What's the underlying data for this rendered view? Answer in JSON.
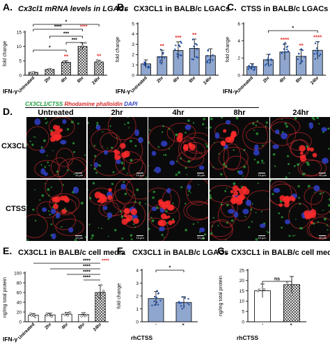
{
  "colors": {
    "blue_bar": "#8fa6cf",
    "red_star": "#e3342f",
    "black": "#000000",
    "hatch": "#333333",
    "dot": "#1f4fa0"
  },
  "panelA": {
    "label": "A.",
    "title": "Cx3cl1 mRNA levels in LGACs",
    "ylabel": "fold change",
    "xfactor": "IFN-γ",
    "chart_data": {
      "type": "bar",
      "categories": [
        "Untreated",
        "2hr",
        "4hr",
        "8hr",
        "24hr"
      ],
      "values": [
        1,
        2,
        4.5,
        10,
        4.6
      ],
      "ylim": [
        0,
        15
      ],
      "yticks": [
        "0",
        "5",
        "10",
        "15"
      ],
      "star_labels": [
        "",
        "",
        "**",
        "",
        "**"
      ],
      "brackets": [
        "****",
        "***",
        "*",
        "****",
        "***",
        "*"
      ],
      "bracket_red": [
        "",
        "",
        "",
        "****",
        "",
        ""
      ]
    }
  },
  "panelB": {
    "label": "B.",
    "title": "CX3CL1 in BALB/c LGACs",
    "ylabel": "fold change",
    "xfactor": "IFN-γ",
    "chart_data": {
      "type": "bar",
      "categories": [
        "Untreated",
        "2hr",
        "4hr",
        "8hr",
        "24hr"
      ],
      "values": [
        1.1,
        1.8,
        2.4,
        2.6,
        1.9
      ],
      "ylim": [
        0,
        5
      ],
      "yticks": [
        "0",
        "1",
        "2",
        "3",
        "4",
        "5"
      ],
      "star_labels": [
        "",
        "**",
        "***",
        "**",
        ""
      ]
    }
  },
  "panelC": {
    "label": "C.",
    "title": "CTSS in BALB/c LGACs",
    "ylabel": "fold change",
    "xfactor": "IFN-γ",
    "chart_data": {
      "type": "bar",
      "categories": [
        "Untreated",
        "2hr",
        "4hr",
        "8hr",
        "24hr"
      ],
      "values": [
        1,
        1.8,
        2.7,
        2.2,
        2.9
      ],
      "ylim": [
        0,
        6
      ],
      "yticks": [
        "0",
        "2",
        "4",
        "6"
      ],
      "star_labels": [
        "",
        "",
        "****",
        "**",
        "****"
      ],
      "bracket": "*"
    }
  },
  "panelD": {
    "label": "D.",
    "legend_parts": [
      "CX3CL1/CTSS",
      "Rhodamine phalloidin",
      "DAPI"
    ],
    "columns": [
      "Untreated",
      "2hr",
      "4hr",
      "8hr",
      "24hr"
    ],
    "rows": [
      "CX3CL1",
      "CTSS"
    ],
    "scale_text": "10 μm"
  },
  "panelE": {
    "label": "E.",
    "title": "CX3CL1 in BALB/c cell media",
    "ylabel": "ng/mg total protein",
    "xfactor": "IFN-γ",
    "chart_data": {
      "type": "bar",
      "categories": [
        "Untreated",
        "2hr",
        "4hr",
        "8hr",
        "24hr"
      ],
      "values": [
        13.5,
        14,
        15.5,
        15,
        60
      ],
      "ylim": [
        0,
        100
      ],
      "yticks": [
        "0",
        "20",
        "40",
        "60",
        "80",
        "100"
      ],
      "brackets": [
        "****",
        "****",
        "****",
        "****"
      ],
      "bracket_red": [
        "****",
        "",
        "",
        ""
      ]
    }
  },
  "panelF": {
    "label": "F.",
    "title": "CX3CL1 in BALB/c LGACs",
    "ylabel": "fold change",
    "xfactor": "rhCTSS",
    "chart_data": {
      "type": "bar",
      "categories": [
        "-",
        "+"
      ],
      "values": [
        1.8,
        1.5
      ],
      "ylim": [
        0,
        4
      ],
      "yticks": [
        "0",
        "1",
        "2",
        "3",
        "4"
      ],
      "bracket": "*"
    }
  },
  "panelG": {
    "label": "G.",
    "title": "CX3CL1 in BALB/c cell media",
    "ylabel": "ng/mg total protein",
    "xfactor": "rhCTSS",
    "chart_data": {
      "type": "bar",
      "categories": [
        "-",
        "+"
      ],
      "values": [
        15,
        18
      ],
      "ylim": [
        0,
        25
      ],
      "yticks": [
        "0",
        "5",
        "10",
        "15",
        "20",
        "25"
      ],
      "bracket": "ns"
    }
  }
}
